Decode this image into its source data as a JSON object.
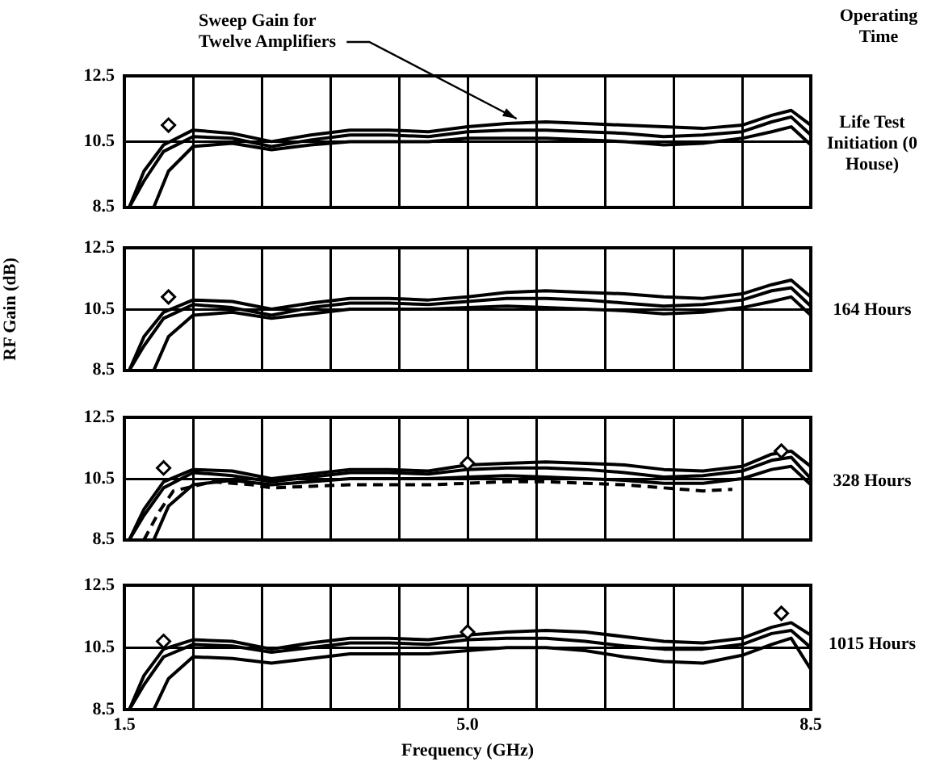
{
  "chart_data": [
    {
      "type": "line",
      "xlim": [
        1.5,
        8.5
      ],
      "xticks": [
        {
          "value": 1.5,
          "label": null
        },
        {
          "value": 2.2,
          "label": null
        },
        {
          "value": 2.9,
          "label": null
        },
        {
          "value": 3.6,
          "label": null
        },
        {
          "value": 4.3,
          "label": null
        },
        {
          "value": 5.0,
          "label": null
        },
        {
          "value": 5.7,
          "label": null
        },
        {
          "value": 6.4,
          "label": null
        },
        {
          "value": 7.1,
          "label": null
        },
        {
          "value": 7.8,
          "label": null
        },
        {
          "value": 8.5,
          "label": null
        }
      ],
      "ylim": [
        8.5,
        12.5
      ],
      "yticks": [
        8.5,
        10.5,
        12.5
      ],
      "grid": true,
      "tick_labels": "y",
      "marker": "none",
      "annotations": [
        "Operating Time",
        "Life Test Initiation (0 House)",
        {
          "text": "Sweep Gain for Twelve Amplifiers",
          "x": 5.5,
          "y": 11.05
        }
      ],
      "series": [
        {
          "color": "#000000",
          "x": [
            1.55,
            1.7,
            1.9,
            2.2,
            2.6,
            3.0,
            3.4,
            3.8,
            4.2,
            4.6,
            5.0,
            5.4,
            5.8,
            6.2,
            6.6,
            7.0,
            7.4,
            7.8,
            8.1,
            8.3,
            8.5
          ],
          "values": [
            8.5,
            9.6,
            10.4,
            10.85,
            10.75,
            10.5,
            10.7,
            10.85,
            10.85,
            10.8,
            10.95,
            11.05,
            11.1,
            11.05,
            11.0,
            10.95,
            10.9,
            11.0,
            11.3,
            11.45,
            11.0
          ]
        },
        {
          "color": "#000000",
          "x": [
            1.55,
            1.7,
            1.9,
            2.2,
            2.6,
            3.0,
            3.4,
            3.8,
            4.2,
            4.6,
            5.0,
            5.4,
            5.8,
            6.2,
            6.6,
            7.0,
            7.4,
            7.8,
            8.1,
            8.3,
            8.5
          ],
          "values": [
            8.5,
            9.3,
            10.2,
            10.65,
            10.6,
            10.35,
            10.55,
            10.7,
            10.7,
            10.65,
            10.8,
            10.85,
            10.85,
            10.8,
            10.75,
            10.65,
            10.7,
            10.8,
            11.1,
            11.25,
            10.7
          ]
        },
        {
          "color": "#000000",
          "x": [
            1.8,
            1.95,
            2.2,
            2.6,
            3.0,
            3.4,
            3.8,
            4.2,
            4.6,
            5.0,
            5.4,
            5.8,
            6.2,
            6.6,
            7.0,
            7.4,
            7.8,
            8.1,
            8.3,
            8.5
          ],
          "values": [
            8.5,
            9.6,
            10.35,
            10.45,
            10.25,
            10.4,
            10.5,
            10.5,
            10.5,
            10.6,
            10.6,
            10.6,
            10.55,
            10.5,
            10.4,
            10.45,
            10.6,
            10.8,
            10.95,
            10.4
          ]
        },
        {
          "type": "scatter",
          "marker": "diamond",
          "color": "#000000",
          "x": [
            1.95
          ],
          "values": [
            11.0
          ]
        }
      ]
    },
    {
      "type": "line",
      "xlim": [
        1.5,
        8.5
      ],
      "xticks": [
        {
          "value": 1.5,
          "label": null
        },
        {
          "value": 2.2,
          "label": null
        },
        {
          "value": 2.9,
          "label": null
        },
        {
          "value": 3.6,
          "label": null
        },
        {
          "value": 4.3,
          "label": null
        },
        {
          "value": 5.0,
          "label": null
        },
        {
          "value": 5.7,
          "label": null
        },
        {
          "value": 6.4,
          "label": null
        },
        {
          "value": 7.1,
          "label": null
        },
        {
          "value": 7.8,
          "label": null
        },
        {
          "value": 8.5,
          "label": null
        }
      ],
      "ylim": [
        8.5,
        12.5
      ],
      "yticks": [
        8.5,
        10.5,
        12.5
      ],
      "grid": true,
      "tick_labels": "y",
      "annotations": [
        "164 Hours"
      ],
      "ylabel": "RF Gain (dB)",
      "marker": "none",
      "series": [
        {
          "color": "#000000",
          "x": [
            1.55,
            1.7,
            1.9,
            2.2,
            2.6,
            3.0,
            3.4,
            3.8,
            4.2,
            4.6,
            5.0,
            5.4,
            5.8,
            6.2,
            6.6,
            7.0,
            7.4,
            7.8,
            8.1,
            8.3,
            8.5
          ],
          "values": [
            8.5,
            9.6,
            10.4,
            10.8,
            10.75,
            10.5,
            10.7,
            10.85,
            10.85,
            10.8,
            10.9,
            11.05,
            11.1,
            11.05,
            11.0,
            10.9,
            10.85,
            11.0,
            11.3,
            11.45,
            10.9
          ]
        },
        {
          "color": "#000000",
          "x": [
            1.55,
            1.7,
            1.9,
            2.2,
            2.6,
            3.0,
            3.4,
            3.8,
            4.2,
            4.6,
            5.0,
            5.4,
            5.8,
            6.2,
            6.6,
            7.0,
            7.4,
            7.8,
            8.1,
            8.3,
            8.5
          ],
          "values": [
            8.5,
            9.3,
            10.2,
            10.65,
            10.55,
            10.3,
            10.55,
            10.7,
            10.7,
            10.65,
            10.75,
            10.85,
            10.85,
            10.8,
            10.7,
            10.6,
            10.65,
            10.8,
            11.1,
            11.2,
            10.6
          ]
        },
        {
          "color": "#000000",
          "x": [
            1.8,
            1.95,
            2.2,
            2.6,
            3.0,
            3.4,
            3.8,
            4.2,
            4.6,
            5.0,
            5.4,
            5.8,
            6.2,
            6.6,
            7.0,
            7.4,
            7.8,
            8.1,
            8.3,
            8.5
          ],
          "values": [
            8.5,
            9.6,
            10.3,
            10.4,
            10.2,
            10.35,
            10.5,
            10.5,
            10.5,
            10.55,
            10.6,
            10.55,
            10.5,
            10.45,
            10.35,
            10.4,
            10.55,
            10.75,
            10.9,
            10.3
          ]
        },
        {
          "type": "scatter",
          "marker": "diamond",
          "color": "#000000",
          "x": [
            1.95
          ],
          "values": [
            10.9
          ]
        }
      ]
    },
    {
      "type": "line",
      "xlim": [
        1.5,
        8.5
      ],
      "xticks": [
        {
          "value": 1.5,
          "label": null
        },
        {
          "value": 2.2,
          "label": null
        },
        {
          "value": 2.9,
          "label": null
        },
        {
          "value": 3.6,
          "label": null
        },
        {
          "value": 4.3,
          "label": null
        },
        {
          "value": 5.0,
          "label": null
        },
        {
          "value": 5.7,
          "label": null
        },
        {
          "value": 6.4,
          "label": null
        },
        {
          "value": 7.1,
          "label": null
        },
        {
          "value": 7.8,
          "label": null
        },
        {
          "value": 8.5,
          "label": null
        }
      ],
      "ylim": [
        8.5,
        12.5
      ],
      "yticks": [
        8.5,
        10.5,
        12.5
      ],
      "grid": true,
      "tick_labels": "y",
      "annotations": [
        "328 Hours"
      ],
      "marker": "none",
      "series": [
        {
          "color": "#000000",
          "x": [
            1.55,
            1.7,
            1.9,
            2.2,
            2.6,
            3.0,
            3.4,
            3.8,
            4.2,
            4.6,
            5.0,
            5.4,
            5.8,
            6.2,
            6.6,
            7.0,
            7.4,
            7.8,
            8.1,
            8.3,
            8.5
          ],
          "values": [
            8.5,
            9.5,
            10.4,
            10.8,
            10.75,
            10.5,
            10.65,
            10.8,
            10.8,
            10.75,
            10.95,
            11.0,
            11.05,
            11.0,
            10.95,
            10.8,
            10.75,
            10.9,
            11.3,
            11.4,
            10.9
          ]
        },
        {
          "color": "#000000",
          "x": [
            1.55,
            1.7,
            1.9,
            2.2,
            2.6,
            3.0,
            3.4,
            3.8,
            4.2,
            4.6,
            5.0,
            5.4,
            5.8,
            6.2,
            6.6,
            7.0,
            7.4,
            7.8,
            8.1,
            8.3,
            8.5
          ],
          "values": [
            8.5,
            9.3,
            10.2,
            10.7,
            10.6,
            10.4,
            10.55,
            10.7,
            10.7,
            10.65,
            10.8,
            10.85,
            10.85,
            10.8,
            10.7,
            10.55,
            10.6,
            10.75,
            11.1,
            11.2,
            10.5
          ]
        },
        {
          "color": "#000000",
          "x": [
            1.8,
            1.95,
            2.2,
            2.6,
            3.0,
            3.4,
            3.8,
            4.2,
            4.6,
            5.0,
            5.4,
            5.8,
            6.2,
            6.6,
            7.0,
            7.4,
            7.8,
            8.1,
            8.3,
            8.5
          ],
          "values": [
            8.5,
            9.6,
            10.3,
            10.45,
            10.3,
            10.4,
            10.5,
            10.5,
            10.5,
            10.55,
            10.6,
            10.55,
            10.5,
            10.45,
            10.35,
            10.35,
            10.5,
            10.8,
            10.9,
            10.3
          ]
        },
        {
          "color": "#000000",
          "line_style": "dashed",
          "x": [
            1.7,
            1.85,
            2.0,
            2.4,
            2.8,
            3.0,
            3.4,
            3.8,
            4.2,
            4.6,
            5.0,
            5.4,
            5.8,
            6.2,
            6.6,
            7.0,
            7.4,
            7.7
          ],
          "values": [
            8.5,
            9.4,
            10.1,
            10.4,
            10.3,
            10.2,
            10.25,
            10.3,
            10.3,
            10.3,
            10.35,
            10.4,
            10.4,
            10.35,
            10.3,
            10.2,
            10.1,
            10.15
          ]
        },
        {
          "type": "scatter",
          "marker": "diamond",
          "color": "#000000",
          "x": [
            1.9,
            5.0,
            8.2
          ],
          "values": [
            10.85,
            11.0,
            11.4
          ]
        }
      ]
    },
    {
      "type": "line",
      "xlim": [
        1.5,
        8.5
      ],
      "xticks": [
        1.5,
        {
          "value": 2.2,
          "label": null
        },
        {
          "value": 2.9,
          "label": null
        },
        {
          "value": 3.6,
          "label": null
        },
        {
          "value": 4.3,
          "label": null
        },
        {
          "value": 5.0,
          "label": "5.0"
        },
        {
          "value": 5.7,
          "label": null
        },
        {
          "value": 6.4,
          "label": null
        },
        {
          "value": 7.1,
          "label": null
        },
        {
          "value": 7.8,
          "label": null
        },
        8.5
      ],
      "ylim": [
        8.5,
        12.5
      ],
      "yticks": [
        8.5,
        10.5,
        12.5
      ],
      "grid": true,
      "annotations": [
        "1015 Hours"
      ],
      "xlabel": "Frequency (GHz)",
      "marker": "none",
      "series": [
        {
          "color": "#000000",
          "x": [
            1.55,
            1.7,
            1.9,
            2.2,
            2.6,
            3.0,
            3.4,
            3.8,
            4.2,
            4.6,
            5.0,
            5.4,
            5.8,
            6.2,
            6.6,
            7.0,
            7.4,
            7.8,
            8.1,
            8.3,
            8.5
          ],
          "values": [
            8.5,
            9.6,
            10.45,
            10.75,
            10.7,
            10.45,
            10.65,
            10.8,
            10.8,
            10.75,
            10.9,
            11.0,
            11.05,
            11.0,
            10.85,
            10.7,
            10.65,
            10.8,
            11.15,
            11.3,
            10.9
          ]
        },
        {
          "color": "#000000",
          "x": [
            1.55,
            1.7,
            1.9,
            2.2,
            2.6,
            3.0,
            3.4,
            3.8,
            4.2,
            4.6,
            5.0,
            5.4,
            5.8,
            6.2,
            6.6,
            7.0,
            7.4,
            7.8,
            8.1,
            8.3,
            8.5
          ],
          "values": [
            8.5,
            9.3,
            10.2,
            10.6,
            10.55,
            10.35,
            10.5,
            10.65,
            10.65,
            10.6,
            10.75,
            10.8,
            10.8,
            10.7,
            10.55,
            10.45,
            10.45,
            10.6,
            10.95,
            11.05,
            10.5
          ]
        },
        {
          "color": "#000000",
          "x": [
            1.8,
            1.95,
            2.2,
            2.6,
            3.0,
            3.4,
            3.8,
            4.2,
            4.6,
            5.0,
            5.4,
            5.8,
            6.2,
            6.6,
            7.0,
            7.4,
            7.8,
            8.1,
            8.3,
            8.5
          ],
          "values": [
            8.5,
            9.5,
            10.2,
            10.15,
            10.0,
            10.15,
            10.3,
            10.3,
            10.3,
            10.4,
            10.5,
            10.5,
            10.4,
            10.2,
            10.05,
            10.0,
            10.25,
            10.6,
            10.8,
            9.8
          ]
        },
        {
          "type": "scatter",
          "marker": "diamond",
          "color": "#000000",
          "x": [
            1.9,
            5.0,
            8.2
          ],
          "values": [
            10.7,
            11.0,
            11.6
          ]
        }
      ]
    }
  ]
}
